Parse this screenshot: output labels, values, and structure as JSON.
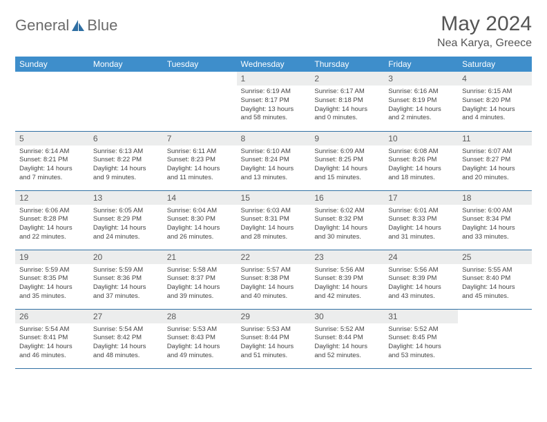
{
  "brand": {
    "word1": "General",
    "word2": "Blue",
    "icon_color": "#2f6fa3"
  },
  "title": {
    "month": "May 2024",
    "location": "Nea Karya, Greece"
  },
  "colors": {
    "header_bg": "#3e8ecb",
    "header_fg": "#ffffff",
    "row_border": "#2f6fa3",
    "daynum_bg": "#eceded",
    "text": "#444"
  },
  "weekdays": [
    "Sunday",
    "Monday",
    "Tuesday",
    "Wednesday",
    "Thursday",
    "Friday",
    "Saturday"
  ],
  "weeks": [
    [
      null,
      null,
      null,
      {
        "n": "1",
        "sr": "6:19 AM",
        "ss": "8:17 PM",
        "dl": "13 hours and 58 minutes."
      },
      {
        "n": "2",
        "sr": "6:17 AM",
        "ss": "8:18 PM",
        "dl": "14 hours and 0 minutes."
      },
      {
        "n": "3",
        "sr": "6:16 AM",
        "ss": "8:19 PM",
        "dl": "14 hours and 2 minutes."
      },
      {
        "n": "4",
        "sr": "6:15 AM",
        "ss": "8:20 PM",
        "dl": "14 hours and 4 minutes."
      }
    ],
    [
      {
        "n": "5",
        "sr": "6:14 AM",
        "ss": "8:21 PM",
        "dl": "14 hours and 7 minutes."
      },
      {
        "n": "6",
        "sr": "6:13 AM",
        "ss": "8:22 PM",
        "dl": "14 hours and 9 minutes."
      },
      {
        "n": "7",
        "sr": "6:11 AM",
        "ss": "8:23 PM",
        "dl": "14 hours and 11 minutes."
      },
      {
        "n": "8",
        "sr": "6:10 AM",
        "ss": "8:24 PM",
        "dl": "14 hours and 13 minutes."
      },
      {
        "n": "9",
        "sr": "6:09 AM",
        "ss": "8:25 PM",
        "dl": "14 hours and 15 minutes."
      },
      {
        "n": "10",
        "sr": "6:08 AM",
        "ss": "8:26 PM",
        "dl": "14 hours and 18 minutes."
      },
      {
        "n": "11",
        "sr": "6:07 AM",
        "ss": "8:27 PM",
        "dl": "14 hours and 20 minutes."
      }
    ],
    [
      {
        "n": "12",
        "sr": "6:06 AM",
        "ss": "8:28 PM",
        "dl": "14 hours and 22 minutes."
      },
      {
        "n": "13",
        "sr": "6:05 AM",
        "ss": "8:29 PM",
        "dl": "14 hours and 24 minutes."
      },
      {
        "n": "14",
        "sr": "6:04 AM",
        "ss": "8:30 PM",
        "dl": "14 hours and 26 minutes."
      },
      {
        "n": "15",
        "sr": "6:03 AM",
        "ss": "8:31 PM",
        "dl": "14 hours and 28 minutes."
      },
      {
        "n": "16",
        "sr": "6:02 AM",
        "ss": "8:32 PM",
        "dl": "14 hours and 30 minutes."
      },
      {
        "n": "17",
        "sr": "6:01 AM",
        "ss": "8:33 PM",
        "dl": "14 hours and 31 minutes."
      },
      {
        "n": "18",
        "sr": "6:00 AM",
        "ss": "8:34 PM",
        "dl": "14 hours and 33 minutes."
      }
    ],
    [
      {
        "n": "19",
        "sr": "5:59 AM",
        "ss": "8:35 PM",
        "dl": "14 hours and 35 minutes."
      },
      {
        "n": "20",
        "sr": "5:59 AM",
        "ss": "8:36 PM",
        "dl": "14 hours and 37 minutes."
      },
      {
        "n": "21",
        "sr": "5:58 AM",
        "ss": "8:37 PM",
        "dl": "14 hours and 39 minutes."
      },
      {
        "n": "22",
        "sr": "5:57 AM",
        "ss": "8:38 PM",
        "dl": "14 hours and 40 minutes."
      },
      {
        "n": "23",
        "sr": "5:56 AM",
        "ss": "8:39 PM",
        "dl": "14 hours and 42 minutes."
      },
      {
        "n": "24",
        "sr": "5:56 AM",
        "ss": "8:39 PM",
        "dl": "14 hours and 43 minutes."
      },
      {
        "n": "25",
        "sr": "5:55 AM",
        "ss": "8:40 PM",
        "dl": "14 hours and 45 minutes."
      }
    ],
    [
      {
        "n": "26",
        "sr": "5:54 AM",
        "ss": "8:41 PM",
        "dl": "14 hours and 46 minutes."
      },
      {
        "n": "27",
        "sr": "5:54 AM",
        "ss": "8:42 PM",
        "dl": "14 hours and 48 minutes."
      },
      {
        "n": "28",
        "sr": "5:53 AM",
        "ss": "8:43 PM",
        "dl": "14 hours and 49 minutes."
      },
      {
        "n": "29",
        "sr": "5:53 AM",
        "ss": "8:44 PM",
        "dl": "14 hours and 51 minutes."
      },
      {
        "n": "30",
        "sr": "5:52 AM",
        "ss": "8:44 PM",
        "dl": "14 hours and 52 minutes."
      },
      {
        "n": "31",
        "sr": "5:52 AM",
        "ss": "8:45 PM",
        "dl": "14 hours and 53 minutes."
      },
      null
    ]
  ],
  "labels": {
    "sunrise": "Sunrise:",
    "sunset": "Sunset:",
    "daylight": "Daylight:"
  }
}
